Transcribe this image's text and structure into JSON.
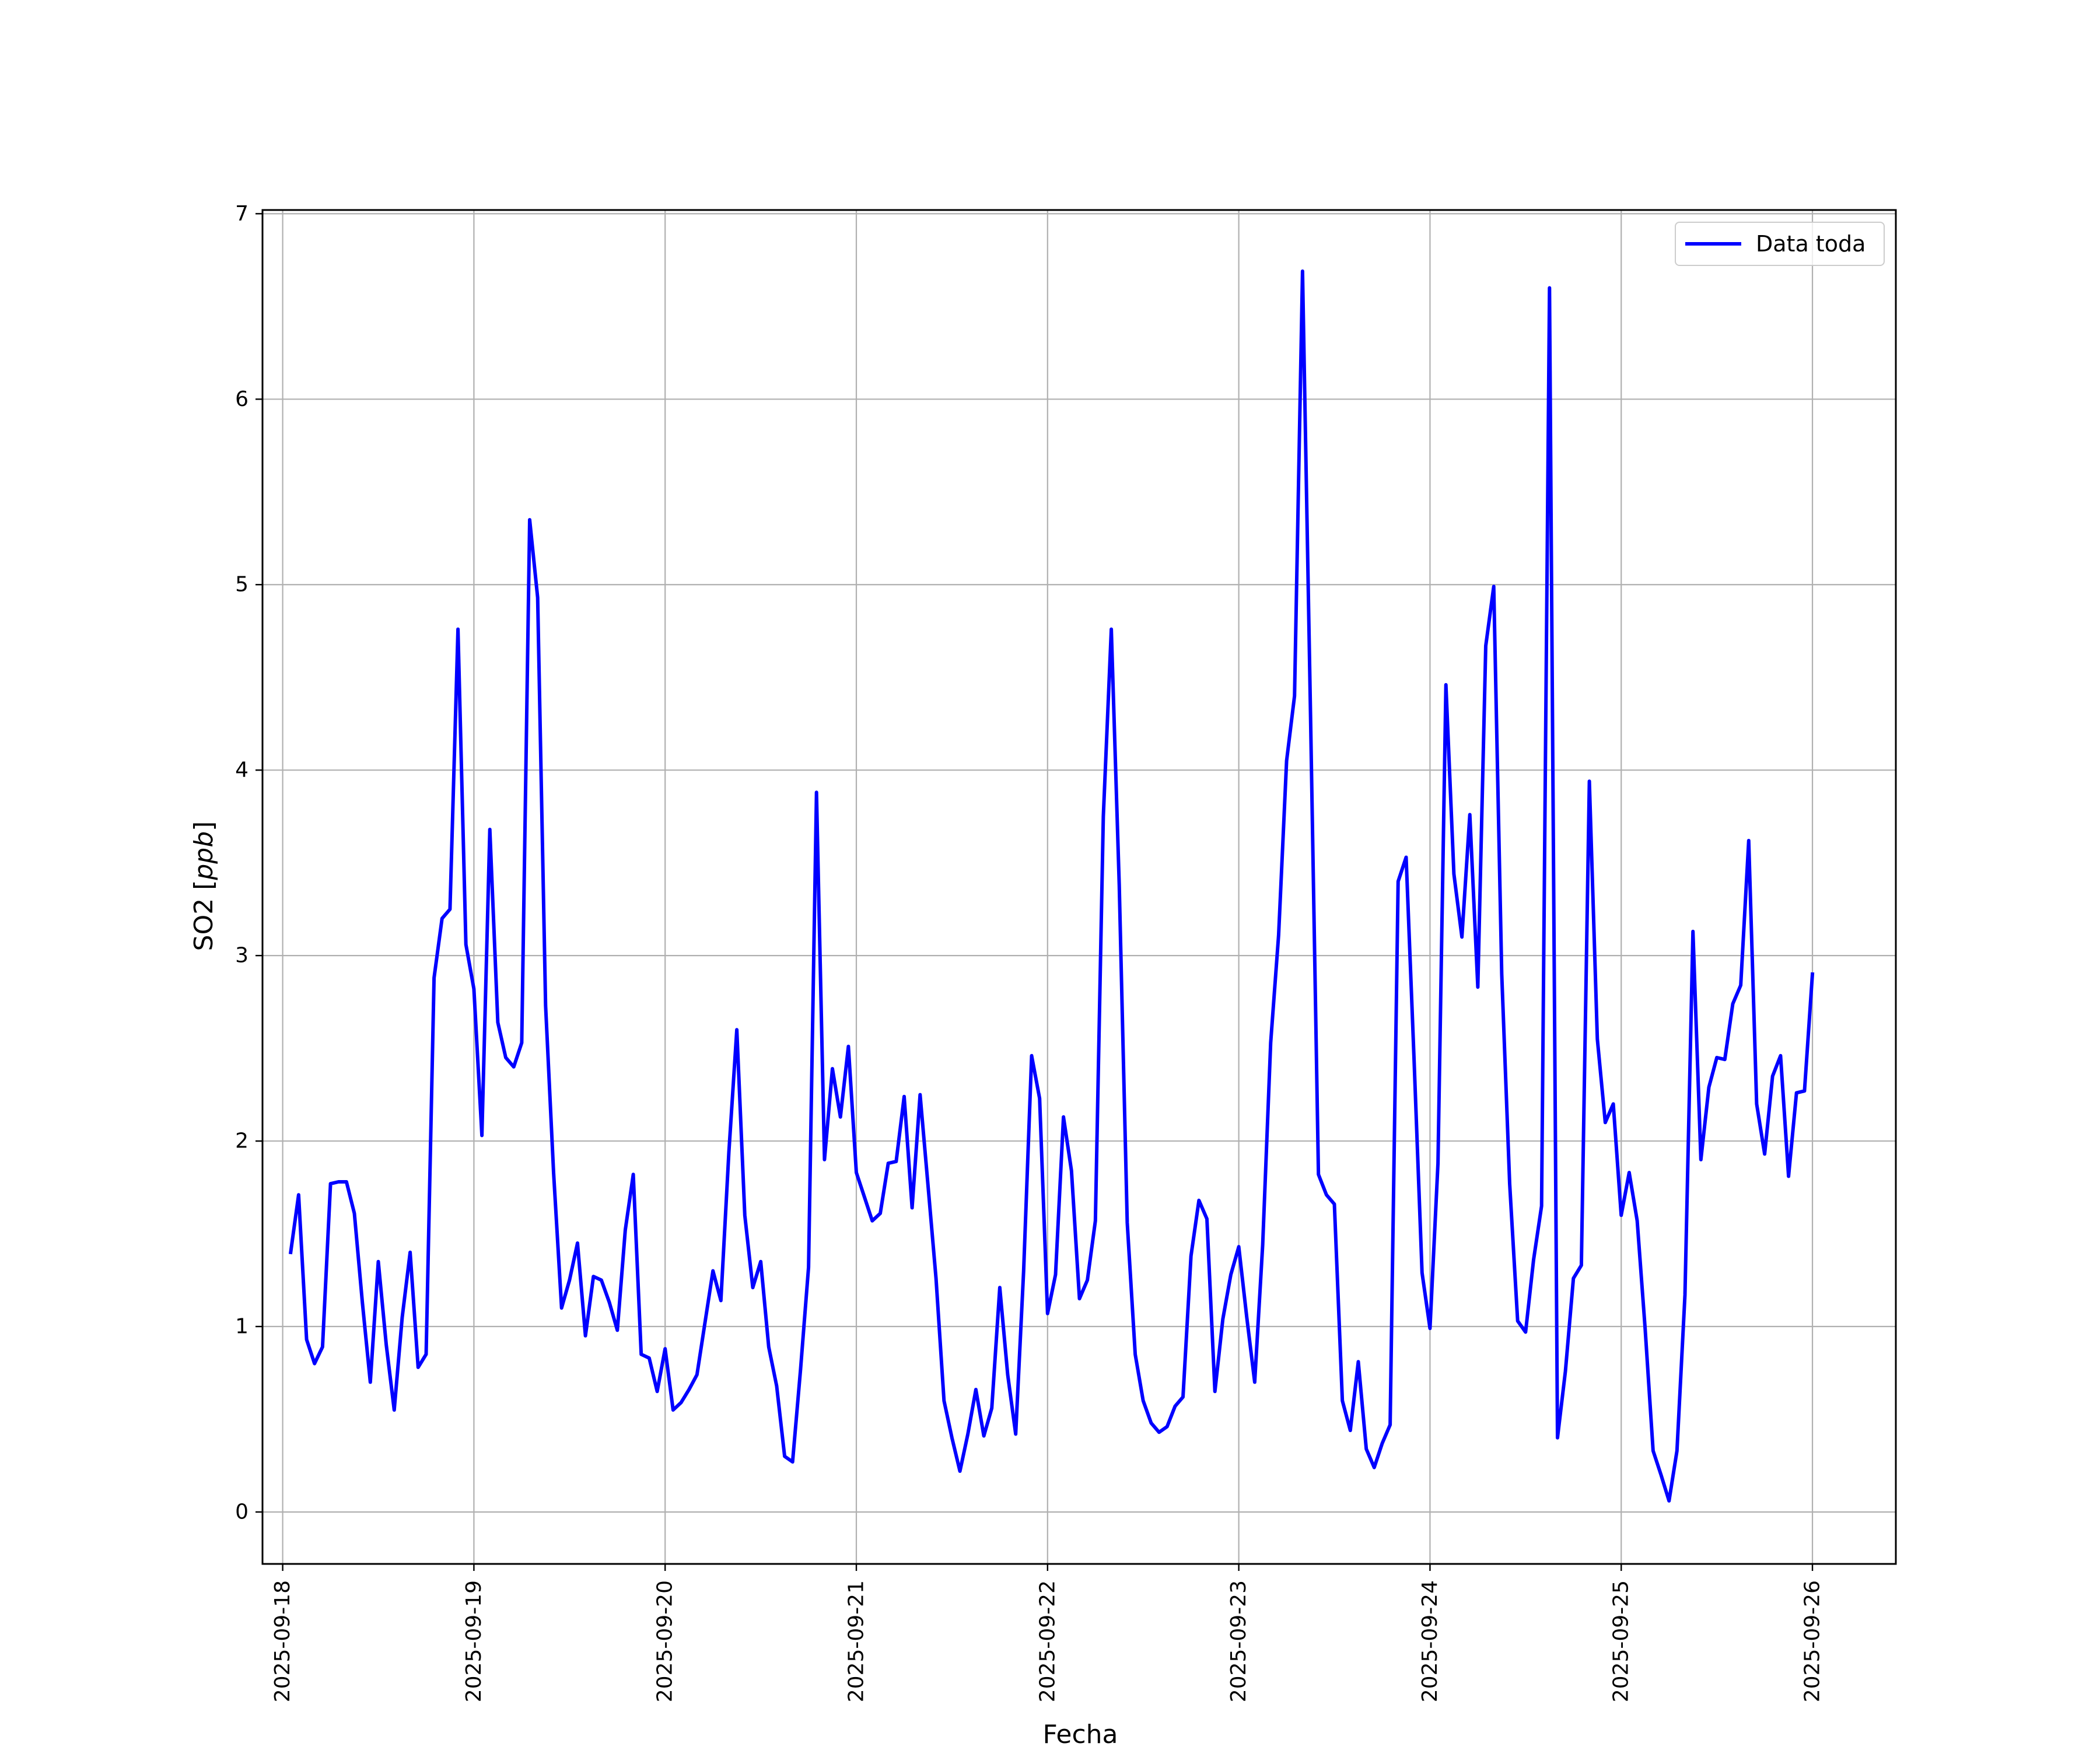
{
  "colors": {
    "series": "#0000ff",
    "grid": "#b0b0b0",
    "axes": "#000000",
    "background": "#ffffff"
  },
  "chart_data": {
    "type": "line",
    "title": "",
    "xlabel": "Fecha",
    "ylabel_main": "SO2 [",
    "ylabel_unit": "ppb",
    "ylabel_end": "]",
    "grid": true,
    "legend_placement": "top-right",
    "xlim": [
      "2025-09-17T21:28:00",
      "2025-09-26T10:28:00"
    ],
    "ylim": [
      -0.28,
      7.02
    ],
    "x_ticks": [
      "2025-09-18",
      "2025-09-19",
      "2025-09-20",
      "2025-09-21",
      "2025-09-22",
      "2025-09-23",
      "2025-09-24",
      "2025-09-25",
      "2025-09-26"
    ],
    "y_ticks": [
      0,
      1,
      2,
      3,
      4,
      5,
      6,
      7
    ],
    "series": [
      {
        "name": "Data toda",
        "color": "#0000ff",
        "x": [
          "2025-09-18T01:00",
          "2025-09-18T02:00",
          "2025-09-18T03:00",
          "2025-09-18T04:00",
          "2025-09-18T05:00",
          "2025-09-18T06:00",
          "2025-09-18T07:00",
          "2025-09-18T08:00",
          "2025-09-18T09:00",
          "2025-09-18T10:00",
          "2025-09-18T11:00",
          "2025-09-18T12:00",
          "2025-09-18T13:00",
          "2025-09-18T14:00",
          "2025-09-18T15:00",
          "2025-09-18T16:00",
          "2025-09-18T17:00",
          "2025-09-18T18:00",
          "2025-09-18T19:00",
          "2025-09-18T20:00",
          "2025-09-18T21:00",
          "2025-09-18T22:00",
          "2025-09-18T23:00",
          "2025-09-19T00:00",
          "2025-09-19T01:00",
          "2025-09-19T02:00",
          "2025-09-19T03:00",
          "2025-09-19T04:00",
          "2025-09-19T05:00",
          "2025-09-19T06:00",
          "2025-09-19T07:00",
          "2025-09-19T08:00",
          "2025-09-19T09:00",
          "2025-09-19T10:00",
          "2025-09-19T11:00",
          "2025-09-19T12:00",
          "2025-09-19T13:00",
          "2025-09-19T14:00",
          "2025-09-19T15:00",
          "2025-09-19T16:00",
          "2025-09-19T17:00",
          "2025-09-19T18:00",
          "2025-09-19T19:00",
          "2025-09-19T20:00",
          "2025-09-19T21:00",
          "2025-09-19T22:00",
          "2025-09-19T23:00",
          "2025-09-20T00:00",
          "2025-09-20T01:00",
          "2025-09-20T02:00",
          "2025-09-20T03:00",
          "2025-09-20T04:00",
          "2025-09-20T05:00",
          "2025-09-20T06:00",
          "2025-09-20T07:00",
          "2025-09-20T08:00",
          "2025-09-20T09:00",
          "2025-09-20T10:00",
          "2025-09-20T11:00",
          "2025-09-20T12:00",
          "2025-09-20T13:00",
          "2025-09-20T14:00",
          "2025-09-20T15:00",
          "2025-09-20T16:00",
          "2025-09-20T17:00",
          "2025-09-20T18:00",
          "2025-09-20T19:00",
          "2025-09-20T20:00",
          "2025-09-20T21:00",
          "2025-09-20T22:00",
          "2025-09-20T23:00",
          "2025-09-21T00:00",
          "2025-09-21T01:00",
          "2025-09-21T02:00",
          "2025-09-21T03:00",
          "2025-09-21T04:00",
          "2025-09-21T05:00",
          "2025-09-21T06:00",
          "2025-09-21T07:00",
          "2025-09-21T08:00",
          "2025-09-21T09:00",
          "2025-09-21T10:00",
          "2025-09-21T11:00",
          "2025-09-21T12:00",
          "2025-09-21T13:00",
          "2025-09-21T14:00",
          "2025-09-21T15:00",
          "2025-09-21T16:00",
          "2025-09-21T17:00",
          "2025-09-21T18:00",
          "2025-09-21T19:00",
          "2025-09-21T20:00",
          "2025-09-21T21:00",
          "2025-09-21T22:00",
          "2025-09-21T23:00",
          "2025-09-22T00:00",
          "2025-09-22T01:00",
          "2025-09-22T02:00",
          "2025-09-22T03:00",
          "2025-09-22T04:00",
          "2025-09-22T05:00",
          "2025-09-22T06:00",
          "2025-09-22T07:00",
          "2025-09-22T08:00",
          "2025-09-22T09:00",
          "2025-09-22T10:00",
          "2025-09-22T11:00",
          "2025-09-22T12:00",
          "2025-09-22T13:00",
          "2025-09-22T14:00",
          "2025-09-22T15:00",
          "2025-09-22T16:00",
          "2025-09-22T17:00",
          "2025-09-22T18:00",
          "2025-09-22T19:00",
          "2025-09-22T20:00",
          "2025-09-22T21:00",
          "2025-09-22T22:00",
          "2025-09-22T23:00",
          "2025-09-23T00:00",
          "2025-09-23T01:00",
          "2025-09-23T02:00",
          "2025-09-23T03:00",
          "2025-09-23T04:00",
          "2025-09-23T05:00",
          "2025-09-23T06:00",
          "2025-09-23T07:00",
          "2025-09-23T08:00",
          "2025-09-23T09:00",
          "2025-09-23T10:00",
          "2025-09-23T11:00",
          "2025-09-23T12:00",
          "2025-09-23T13:00",
          "2025-09-23T14:00",
          "2025-09-23T15:00",
          "2025-09-23T16:00",
          "2025-09-23T17:00",
          "2025-09-23T18:00",
          "2025-09-23T19:00",
          "2025-09-23T20:00",
          "2025-09-23T21:00",
          "2025-09-23T22:00",
          "2025-09-23T23:00",
          "2025-09-24T00:00",
          "2025-09-24T01:00",
          "2025-09-24T02:00",
          "2025-09-24T03:00",
          "2025-09-24T04:00",
          "2025-09-24T05:00",
          "2025-09-24T06:00",
          "2025-09-24T07:00",
          "2025-09-24T08:00",
          "2025-09-24T09:00",
          "2025-09-24T10:00",
          "2025-09-24T11:00",
          "2025-09-24T12:00",
          "2025-09-24T13:00",
          "2025-09-24T14:00",
          "2025-09-24T15:00",
          "2025-09-24T16:00",
          "2025-09-24T17:00",
          "2025-09-24T18:00",
          "2025-09-24T19:00",
          "2025-09-24T20:00",
          "2025-09-24T21:00",
          "2025-09-24T22:00",
          "2025-09-24T23:00",
          "2025-09-25T00:00",
          "2025-09-25T01:00",
          "2025-09-25T02:00",
          "2025-09-25T03:00",
          "2025-09-25T04:00",
          "2025-09-25T05:00",
          "2025-09-25T06:00",
          "2025-09-25T07:00",
          "2025-09-25T08:00",
          "2025-09-25T09:00",
          "2025-09-25T10:00",
          "2025-09-25T11:00",
          "2025-09-25T12:00",
          "2025-09-25T13:00",
          "2025-09-25T14:00",
          "2025-09-25T15:00",
          "2025-09-25T16:00",
          "2025-09-25T17:00",
          "2025-09-25T18:00",
          "2025-09-25T19:00",
          "2025-09-25T20:00",
          "2025-09-25T21:00",
          "2025-09-25T22:00",
          "2025-09-25T23:00",
          "2025-09-26T00:00"
        ],
        "y": [
          1.4,
          1.71,
          0.93,
          0.8,
          0.89,
          1.77,
          1.78,
          1.78,
          1.61,
          1.13,
          0.7,
          1.35,
          0.9,
          0.55,
          1.05,
          1.4,
          0.78,
          0.85,
          2.88,
          3.2,
          3.25,
          4.76,
          3.06,
          2.82,
          2.03,
          3.68,
          2.64,
          2.45,
          2.4,
          2.53,
          5.35,
          4.93,
          2.73,
          1.83,
          1.1,
          1.25,
          1.45,
          0.95,
          1.27,
          1.25,
          1.13,
          0.98,
          1.52,
          1.82,
          0.85,
          0.83,
          0.65,
          0.88,
          0.55,
          0.59,
          0.66,
          0.74,
          1.02,
          1.3,
          1.14,
          1.94,
          2.6,
          1.6,
          1.21,
          1.35,
          0.89,
          0.68,
          0.3,
          0.27,
          0.77,
          1.32,
          3.88,
          1.9,
          2.39,
          2.13,
          2.51,
          1.83,
          1.7,
          1.57,
          1.61,
          1.88,
          1.89,
          2.24,
          1.64,
          2.25,
          1.76,
          1.26,
          0.6,
          0.4,
          0.22,
          0.42,
          0.66,
          0.41,
          0.56,
          1.21,
          0.74,
          0.42,
          1.3,
          2.46,
          2.23,
          1.07,
          1.28,
          2.13,
          1.84,
          1.15,
          1.25,
          1.57,
          3.75,
          4.76,
          3.38,
          1.56,
          0.85,
          0.6,
          0.48,
          0.43,
          0.46,
          0.57,
          0.62,
          1.38,
          1.68,
          1.58,
          0.65,
          1.04,
          1.28,
          1.43,
          1.05,
          0.7,
          1.44,
          2.53,
          3.11,
          4.05,
          4.4,
          6.69,
          4.3,
          1.82,
          1.71,
          1.66,
          0.6,
          0.44,
          0.81,
          0.34,
          0.24,
          0.37,
          0.47,
          3.4,
          3.53,
          2.44,
          1.29,
          0.99,
          1.88,
          4.46,
          3.44,
          3.1,
          3.76,
          2.83,
          4.67,
          4.99,
          2.9,
          1.77,
          1.03,
          0.97,
          1.36,
          1.65,
          6.6,
          0.4,
          0.76,
          1.26,
          1.33,
          3.94,
          2.55,
          2.1,
          2.2,
          1.6,
          1.83,
          1.57,
          0.99,
          0.33,
          0.2,
          0.06,
          0.33,
          1.17,
          3.13,
          1.9,
          2.29,
          2.45,
          2.44,
          2.74,
          2.84,
          3.62,
          2.2,
          1.93,
          2.35,
          2.46,
          1.81,
          2.26,
          2.27,
          2.9
        ]
      }
    ]
  }
}
